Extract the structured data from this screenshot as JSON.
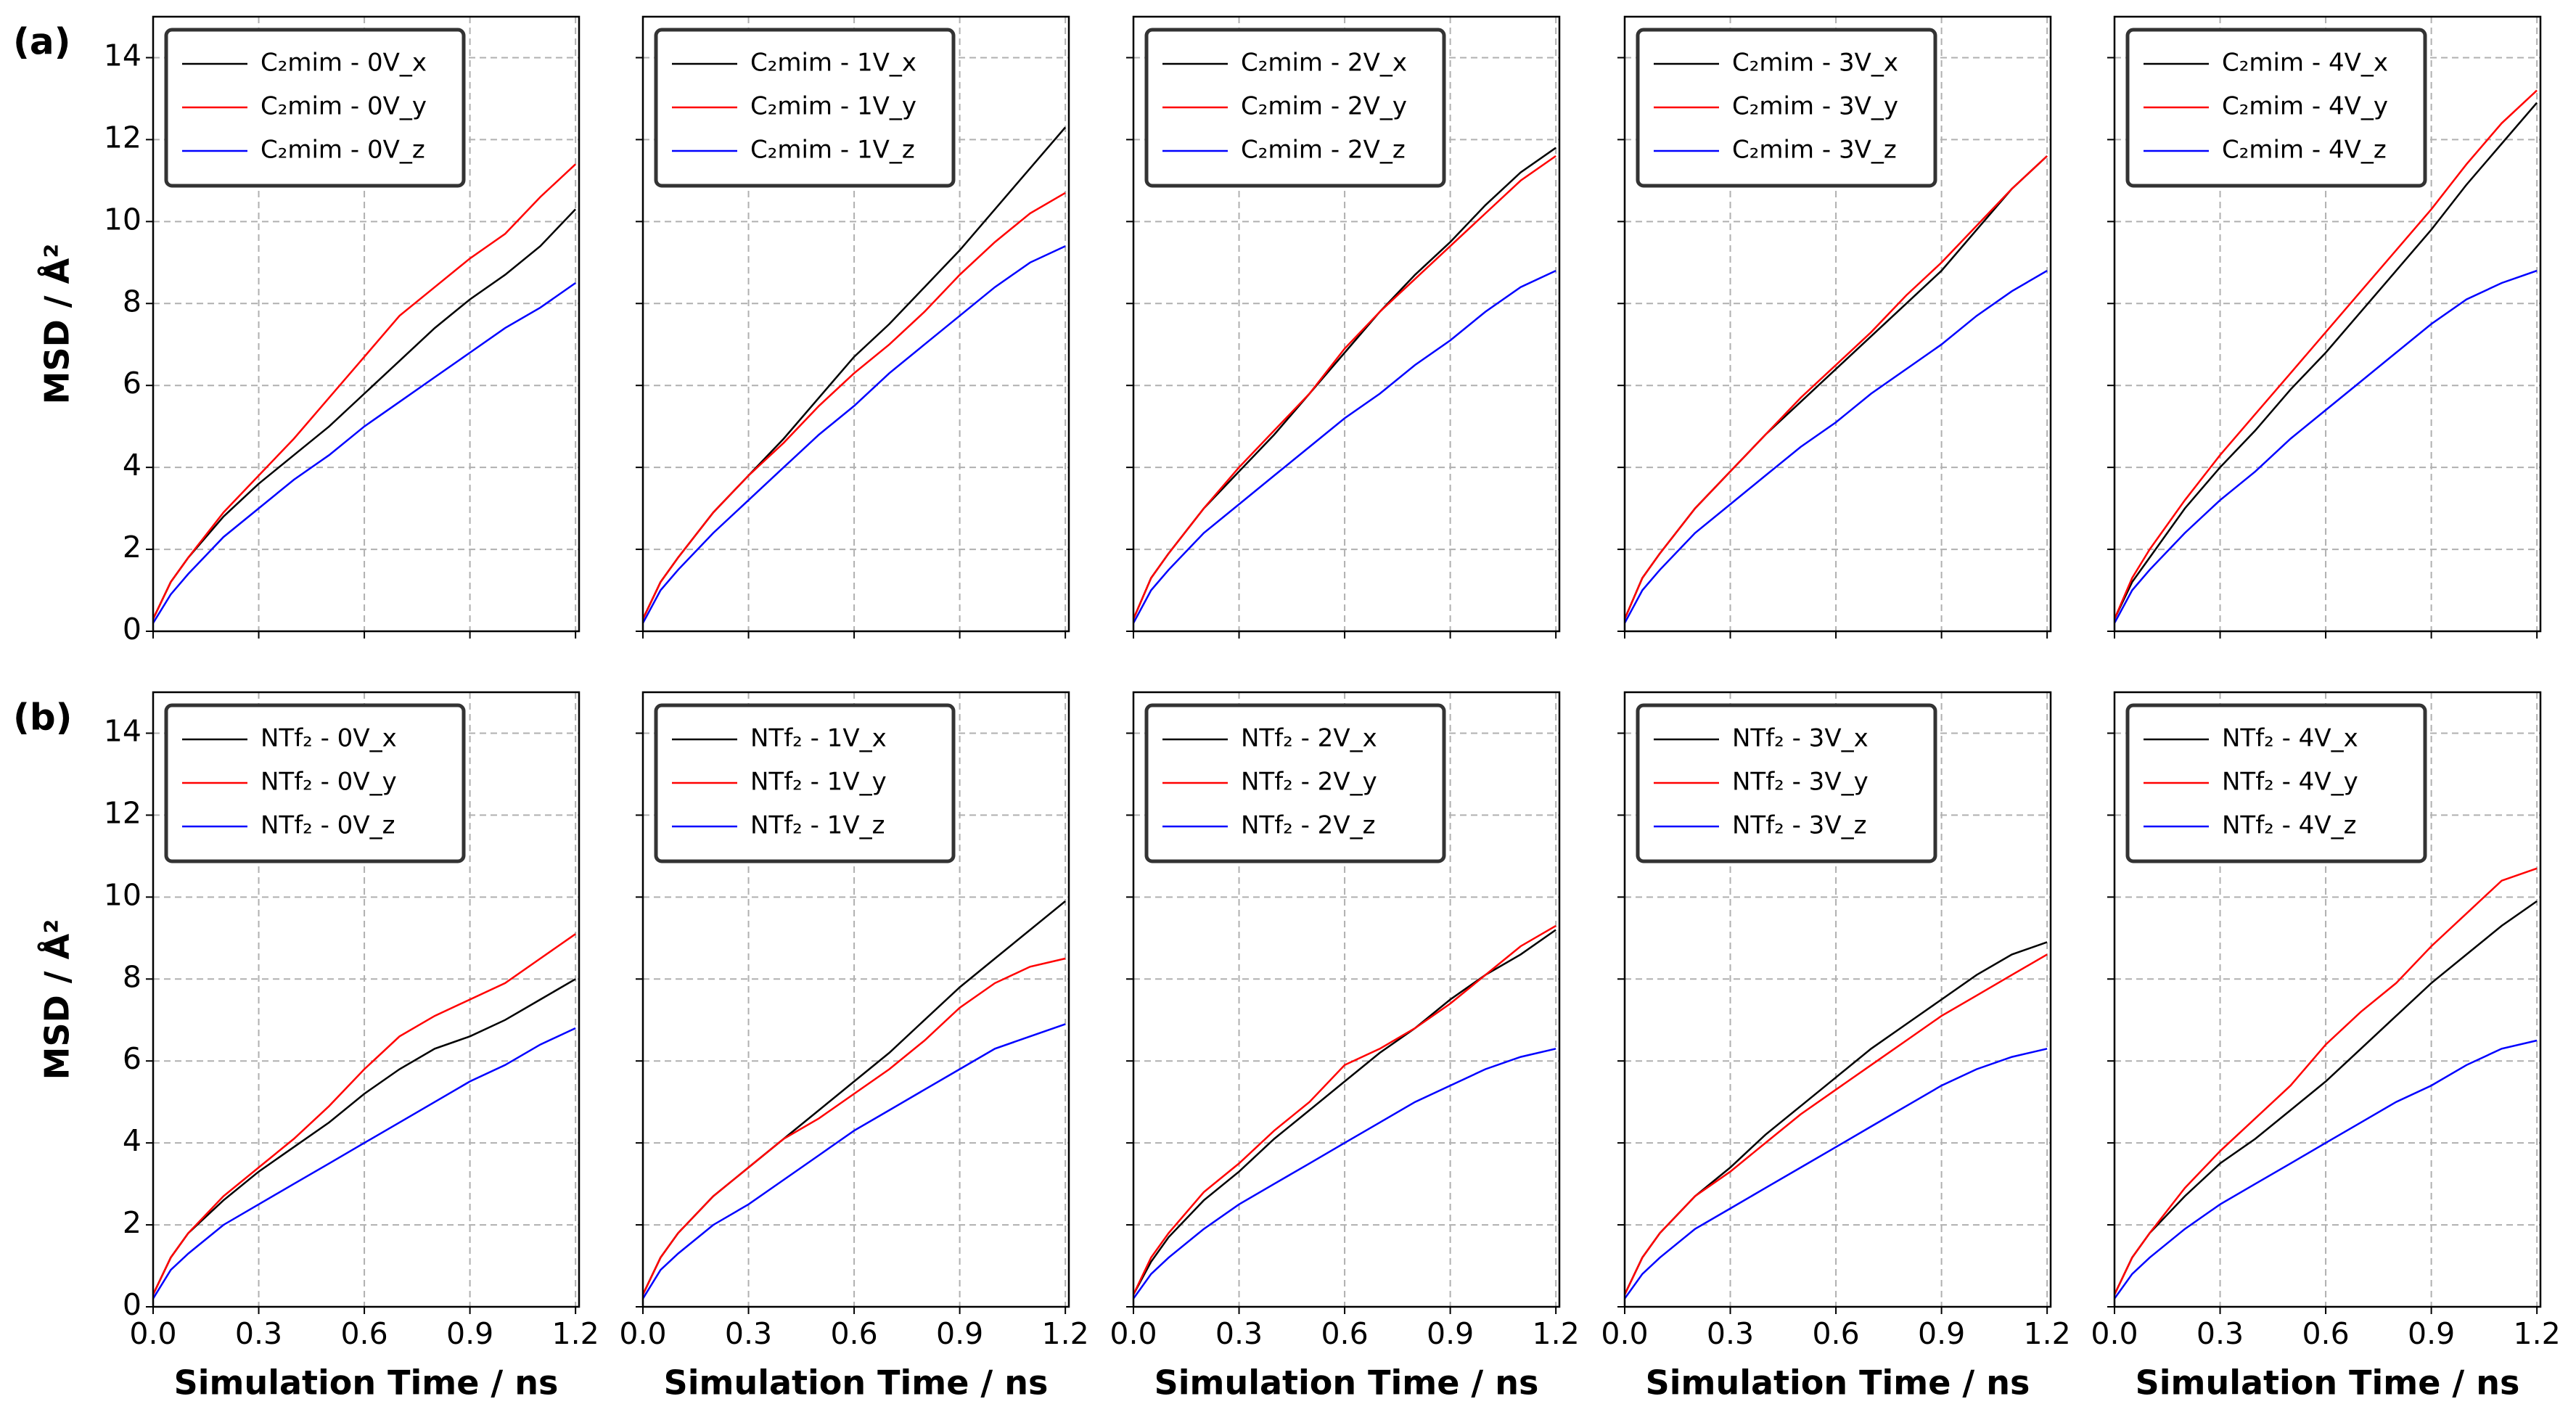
{
  "chart_data": [
    {
      "type": "line",
      "panel_label": "(a)",
      "ylabel": "MSD / Å²",
      "x": [
        0,
        0.05,
        0.1,
        0.2,
        0.3,
        0.4,
        0.5,
        0.6,
        0.7,
        0.8,
        0.9,
        1.0,
        1.1,
        1.2
      ],
      "series": [
        {
          "name": "C₂mim - 0V_x",
          "color": "#000000",
          "values": [
            0.3,
            1.2,
            1.8,
            2.8,
            3.6,
            4.3,
            5.0,
            5.8,
            6.6,
            7.4,
            8.1,
            8.7,
            9.4,
            10.3
          ]
        },
        {
          "name": "C₂mim - 0V_y",
          "color": "#ff0000",
          "values": [
            0.3,
            1.2,
            1.8,
            2.9,
            3.8,
            4.7,
            5.7,
            6.7,
            7.7,
            8.4,
            9.1,
            9.7,
            10.6,
            11.4
          ]
        },
        {
          "name": "C₂mim - 0V_z",
          "color": "#0000ff",
          "values": [
            0.2,
            0.9,
            1.4,
            2.3,
            3.0,
            3.7,
            4.3,
            5.0,
            5.6,
            6.2,
            6.8,
            7.4,
            7.9,
            8.5
          ]
        }
      ],
      "xlim": [
        0,
        1.21
      ],
      "ylim": [
        0,
        15
      ],
      "xticks": [
        0,
        0.3,
        0.6,
        0.9,
        1.2
      ],
      "yticks": [
        0,
        2,
        4,
        6,
        8,
        10,
        12,
        14
      ],
      "grid": true,
      "legend": "upper left",
      "xticklabels": false,
      "yticklabels": true
    },
    {
      "type": "line",
      "x": [
        0,
        0.05,
        0.1,
        0.2,
        0.3,
        0.4,
        0.5,
        0.6,
        0.7,
        0.8,
        0.9,
        1.0,
        1.1,
        1.2
      ],
      "series": [
        {
          "name": "C₂mim - 1V_x",
          "color": "#000000",
          "values": [
            0.3,
            1.2,
            1.8,
            2.9,
            3.8,
            4.7,
            5.7,
            6.7,
            7.5,
            8.4,
            9.3,
            10.3,
            11.3,
            12.3
          ]
        },
        {
          "name": "C₂mim - 1V_y",
          "color": "#ff0000",
          "values": [
            0.3,
            1.2,
            1.8,
            2.9,
            3.8,
            4.6,
            5.5,
            6.3,
            7.0,
            7.8,
            8.7,
            9.5,
            10.2,
            10.7
          ]
        },
        {
          "name": "C₂mim - 1V_z",
          "color": "#0000ff",
          "values": [
            0.2,
            1.0,
            1.5,
            2.4,
            3.2,
            4.0,
            4.8,
            5.5,
            6.3,
            7.0,
            7.7,
            8.4,
            9.0,
            9.4
          ]
        }
      ],
      "xlim": [
        0,
        1.21
      ],
      "ylim": [
        0,
        15
      ],
      "xticks": [
        0,
        0.3,
        0.6,
        0.9,
        1.2
      ],
      "yticks": [
        0,
        2,
        4,
        6,
        8,
        10,
        12,
        14
      ],
      "grid": true,
      "legend": "upper left",
      "xticklabels": false,
      "yticklabels": false
    },
    {
      "type": "line",
      "x": [
        0,
        0.05,
        0.1,
        0.2,
        0.3,
        0.4,
        0.5,
        0.6,
        0.7,
        0.8,
        0.9,
        1.0,
        1.1,
        1.2
      ],
      "series": [
        {
          "name": "C₂mim - 2V_x",
          "color": "#000000",
          "values": [
            0.3,
            1.3,
            1.9,
            3.0,
            3.9,
            4.8,
            5.8,
            6.8,
            7.8,
            8.7,
            9.5,
            10.4,
            11.2,
            11.8
          ]
        },
        {
          "name": "C₂mim - 2V_y",
          "color": "#ff0000",
          "values": [
            0.3,
            1.3,
            1.9,
            3.0,
            4.0,
            4.9,
            5.8,
            6.9,
            7.8,
            8.6,
            9.4,
            10.2,
            11.0,
            11.6
          ]
        },
        {
          "name": "C₂mim - 2V_z",
          "color": "#0000ff",
          "values": [
            0.2,
            1.0,
            1.5,
            2.4,
            3.1,
            3.8,
            4.5,
            5.2,
            5.8,
            6.5,
            7.1,
            7.8,
            8.4,
            8.8
          ]
        }
      ],
      "xlim": [
        0,
        1.21
      ],
      "ylim": [
        0,
        15
      ],
      "xticks": [
        0,
        0.3,
        0.6,
        0.9,
        1.2
      ],
      "yticks": [
        0,
        2,
        4,
        6,
        8,
        10,
        12,
        14
      ],
      "grid": true,
      "legend": "upper left",
      "xticklabels": false,
      "yticklabels": false
    },
    {
      "type": "line",
      "x": [
        0,
        0.05,
        0.1,
        0.2,
        0.3,
        0.4,
        0.5,
        0.6,
        0.7,
        0.8,
        0.9,
        1.0,
        1.1,
        1.2
      ],
      "series": [
        {
          "name": "C₂mim - 3V_x",
          "color": "#000000",
          "values": [
            0.3,
            1.3,
            1.9,
            3.0,
            3.9,
            4.8,
            5.6,
            6.4,
            7.2,
            8.0,
            8.8,
            9.8,
            10.8,
            11.6
          ]
        },
        {
          "name": "C₂mim - 3V_y",
          "color": "#ff0000",
          "values": [
            0.3,
            1.3,
            1.9,
            3.0,
            3.9,
            4.8,
            5.7,
            6.5,
            7.3,
            8.2,
            9.0,
            9.9,
            10.8,
            11.6
          ]
        },
        {
          "name": "C₂mim - 3V_z",
          "color": "#0000ff",
          "values": [
            0.2,
            1.0,
            1.5,
            2.4,
            3.1,
            3.8,
            4.5,
            5.1,
            5.8,
            6.4,
            7.0,
            7.7,
            8.3,
            8.8
          ]
        }
      ],
      "xlim": [
        0,
        1.21
      ],
      "ylim": [
        0,
        15
      ],
      "xticks": [
        0,
        0.3,
        0.6,
        0.9,
        1.2
      ],
      "yticks": [
        0,
        2,
        4,
        6,
        8,
        10,
        12,
        14
      ],
      "grid": true,
      "legend": "upper left",
      "xticklabels": false,
      "yticklabels": false
    },
    {
      "type": "line",
      "x": [
        0,
        0.05,
        0.1,
        0.2,
        0.3,
        0.4,
        0.5,
        0.6,
        0.7,
        0.8,
        0.9,
        1.0,
        1.1,
        1.2
      ],
      "series": [
        {
          "name": "C₂mim - 4V_x",
          "color": "#000000",
          "values": [
            0.3,
            1.2,
            1.8,
            3.0,
            4.0,
            4.9,
            5.9,
            6.8,
            7.8,
            8.8,
            9.8,
            10.9,
            11.9,
            12.9
          ]
        },
        {
          "name": "C₂mim - 4V_y",
          "color": "#ff0000",
          "values": [
            0.3,
            1.3,
            2.0,
            3.2,
            4.3,
            5.3,
            6.3,
            7.3,
            8.3,
            9.3,
            10.3,
            11.4,
            12.4,
            13.2
          ]
        },
        {
          "name": "C₂mim - 4V_z",
          "color": "#0000ff",
          "values": [
            0.2,
            1.0,
            1.5,
            2.4,
            3.2,
            3.9,
            4.7,
            5.4,
            6.1,
            6.8,
            7.5,
            8.1,
            8.5,
            8.8
          ]
        }
      ],
      "xlim": [
        0,
        1.21
      ],
      "ylim": [
        0,
        15
      ],
      "xticks": [
        0,
        0.3,
        0.6,
        0.9,
        1.2
      ],
      "yticks": [
        0,
        2,
        4,
        6,
        8,
        10,
        12,
        14
      ],
      "grid": true,
      "legend": "upper left",
      "xticklabels": false,
      "yticklabels": false
    },
    {
      "type": "line",
      "panel_label": "(b)",
      "ylabel": "MSD / Å²",
      "xlabel": "Simulation Time / ns",
      "x": [
        0,
        0.05,
        0.1,
        0.2,
        0.3,
        0.4,
        0.5,
        0.6,
        0.7,
        0.8,
        0.9,
        1.0,
        1.1,
        1.2
      ],
      "series": [
        {
          "name": "NTf₂ - 0V_x",
          "color": "#000000",
          "values": [
            0.3,
            1.2,
            1.8,
            2.6,
            3.3,
            3.9,
            4.5,
            5.2,
            5.8,
            6.3,
            6.6,
            7.0,
            7.5,
            8.0
          ]
        },
        {
          "name": "NTf₂ - 0V_y",
          "color": "#ff0000",
          "values": [
            0.3,
            1.2,
            1.8,
            2.7,
            3.4,
            4.1,
            4.9,
            5.8,
            6.6,
            7.1,
            7.5,
            7.9,
            8.5,
            9.1
          ]
        },
        {
          "name": "NTf₂ - 0V_z",
          "color": "#0000ff",
          "values": [
            0.2,
            0.9,
            1.3,
            2.0,
            2.5,
            3.0,
            3.5,
            4.0,
            4.5,
            5.0,
            5.5,
            5.9,
            6.4,
            6.8
          ]
        }
      ],
      "xlim": [
        0,
        1.21
      ],
      "ylim": [
        0,
        15
      ],
      "xticks": [
        {
          "value": 0,
          "label": "0.0"
        },
        0.3,
        0.6,
        0.9,
        1.2
      ],
      "yticks": [
        0,
        2,
        4,
        6,
        8,
        10,
        12,
        14
      ],
      "grid": true,
      "legend": "upper left",
      "xticklabels": true,
      "yticklabels": true
    },
    {
      "type": "line",
      "xlabel": "Simulation Time / ns",
      "x": [
        0,
        0.05,
        0.1,
        0.2,
        0.3,
        0.4,
        0.5,
        0.6,
        0.7,
        0.8,
        0.9,
        1.0,
        1.1,
        1.2
      ],
      "series": [
        {
          "name": "NTf₂ - 1V_x",
          "color": "#000000",
          "values": [
            0.3,
            1.2,
            1.8,
            2.7,
            3.4,
            4.1,
            4.8,
            5.5,
            6.2,
            7.0,
            7.8,
            8.5,
            9.2,
            9.9
          ]
        },
        {
          "name": "NTf₂ - 1V_y",
          "color": "#ff0000",
          "values": [
            0.3,
            1.2,
            1.8,
            2.7,
            3.4,
            4.1,
            4.6,
            5.2,
            5.8,
            6.5,
            7.3,
            7.9,
            8.3,
            8.5
          ]
        },
        {
          "name": "NTf₂ - 1V_z",
          "color": "#0000ff",
          "values": [
            0.2,
            0.9,
            1.3,
            2.0,
            2.5,
            3.1,
            3.7,
            4.3,
            4.8,
            5.3,
            5.8,
            6.3,
            6.6,
            6.9
          ]
        }
      ],
      "xlim": [
        0,
        1.21
      ],
      "ylim": [
        0,
        15
      ],
      "xticks": [
        {
          "value": 0,
          "label": "0.0"
        },
        0.3,
        0.6,
        0.9,
        1.2
      ],
      "yticks": [
        0,
        2,
        4,
        6,
        8,
        10,
        12,
        14
      ],
      "grid": true,
      "legend": "upper left",
      "xticklabels": true,
      "yticklabels": false
    },
    {
      "type": "line",
      "xlabel": "Simulation Time / ns",
      "x": [
        0,
        0.05,
        0.1,
        0.2,
        0.3,
        0.4,
        0.5,
        0.6,
        0.7,
        0.8,
        0.9,
        1.0,
        1.1,
        1.2
      ],
      "series": [
        {
          "name": "NTf₂ - 2V_x",
          "color": "#000000",
          "values": [
            0.3,
            1.1,
            1.7,
            2.6,
            3.3,
            4.1,
            4.8,
            5.5,
            6.2,
            6.8,
            7.5,
            8.1,
            8.6,
            9.2
          ]
        },
        {
          "name": "NTf₂ - 2V_y",
          "color": "#ff0000",
          "values": [
            0.3,
            1.2,
            1.8,
            2.8,
            3.5,
            4.3,
            5.0,
            5.9,
            6.3,
            6.8,
            7.4,
            8.1,
            8.8,
            9.3
          ]
        },
        {
          "name": "NTf₂ - 2V_z",
          "color": "#0000ff",
          "values": [
            0.2,
            0.8,
            1.2,
            1.9,
            2.5,
            3.0,
            3.5,
            4.0,
            4.5,
            5.0,
            5.4,
            5.8,
            6.1,
            6.3
          ]
        }
      ],
      "xlim": [
        0,
        1.21
      ],
      "ylim": [
        0,
        15
      ],
      "xticks": [
        {
          "value": 0,
          "label": "0.0"
        },
        0.3,
        0.6,
        0.9,
        1.2
      ],
      "yticks": [
        0,
        2,
        4,
        6,
        8,
        10,
        12,
        14
      ],
      "grid": true,
      "legend": "upper left",
      "xticklabels": true,
      "yticklabels": false
    },
    {
      "type": "line",
      "xlabel": "Simulation Time / ns",
      "x": [
        0,
        0.05,
        0.1,
        0.2,
        0.3,
        0.4,
        0.5,
        0.6,
        0.7,
        0.8,
        0.9,
        1.0,
        1.1,
        1.2
      ],
      "series": [
        {
          "name": "NTf₂ - 3V_x",
          "color": "#000000",
          "values": [
            0.3,
            1.2,
            1.8,
            2.7,
            3.4,
            4.2,
            4.9,
            5.6,
            6.3,
            6.9,
            7.5,
            8.1,
            8.6,
            8.9
          ]
        },
        {
          "name": "NTf₂ - 3V_y",
          "color": "#ff0000",
          "values": [
            0.3,
            1.2,
            1.8,
            2.7,
            3.3,
            4.0,
            4.7,
            5.3,
            5.9,
            6.5,
            7.1,
            7.6,
            8.1,
            8.6
          ]
        },
        {
          "name": "NTf₂ - 3V_z",
          "color": "#0000ff",
          "values": [
            0.2,
            0.8,
            1.2,
            1.9,
            2.4,
            2.9,
            3.4,
            3.9,
            4.4,
            4.9,
            5.4,
            5.8,
            6.1,
            6.3
          ]
        }
      ],
      "xlim": [
        0,
        1.21
      ],
      "ylim": [
        0,
        15
      ],
      "xticks": [
        {
          "value": 0,
          "label": "0.0"
        },
        0.3,
        0.6,
        0.9,
        1.2
      ],
      "yticks": [
        0,
        2,
        4,
        6,
        8,
        10,
        12,
        14
      ],
      "grid": true,
      "legend": "upper left",
      "xticklabels": true,
      "yticklabels": false
    },
    {
      "type": "line",
      "xlabel": "Simulation Time / ns",
      "x": [
        0,
        0.05,
        0.1,
        0.2,
        0.3,
        0.4,
        0.5,
        0.6,
        0.7,
        0.8,
        0.9,
        1.0,
        1.1,
        1.2
      ],
      "series": [
        {
          "name": "NTf₂ - 4V_x",
          "color": "#000000",
          "values": [
            0.3,
            1.2,
            1.8,
            2.7,
            3.5,
            4.1,
            4.8,
            5.5,
            6.3,
            7.1,
            7.9,
            8.6,
            9.3,
            9.9
          ]
        },
        {
          "name": "NTf₂ - 4V_y",
          "color": "#ff0000",
          "values": [
            0.3,
            1.2,
            1.8,
            2.9,
            3.8,
            4.6,
            5.4,
            6.4,
            7.2,
            7.9,
            8.8,
            9.6,
            10.4,
            10.7
          ]
        },
        {
          "name": "NTf₂ - 4V_z",
          "color": "#0000ff",
          "values": [
            0.2,
            0.8,
            1.2,
            1.9,
            2.5,
            3.0,
            3.5,
            4.0,
            4.5,
            5.0,
            5.4,
            5.9,
            6.3,
            6.5
          ]
        }
      ],
      "xlim": [
        0,
        1.21
      ],
      "ylim": [
        0,
        15
      ],
      "xticks": [
        {
          "value": 0,
          "label": "0.0"
        },
        0.3,
        0.6,
        0.9,
        1.2
      ],
      "yticks": [
        0,
        2,
        4,
        6,
        8,
        10,
        12,
        14
      ],
      "grid": true,
      "legend": "upper left",
      "xticklabels": true,
      "yticklabels": false
    }
  ]
}
